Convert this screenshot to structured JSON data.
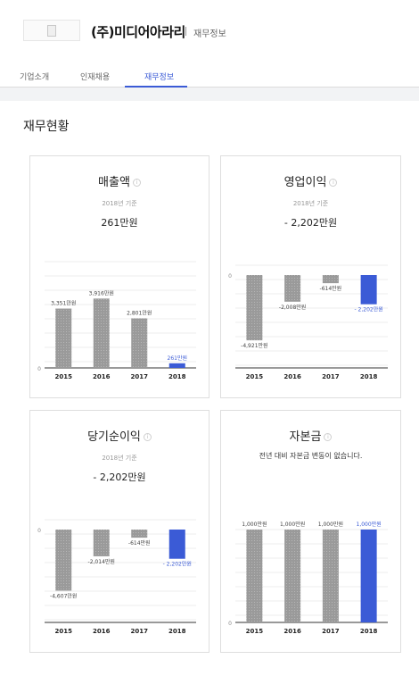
{
  "header": {
    "company_name": "(주)미디어아라리",
    "subtitle": "재무정보"
  },
  "tabs": [
    {
      "label": "기업소개",
      "active": false
    },
    {
      "label": "인재채용",
      "active": false
    },
    {
      "label": "재무정보",
      "active": true
    }
  ],
  "section_title": "재무현황",
  "colors": {
    "accent": "#3b5bd6",
    "bar": "#9a9a9a",
    "bar_highlight": "#3b5bd6"
  },
  "cards": [
    {
      "title": "매출액",
      "basis": "2018년 기준",
      "value": "261만원"
    },
    {
      "title": "영업이익",
      "basis": "2018년 기준",
      "value": "- 2,202만원"
    },
    {
      "title": "당기순이익",
      "basis": "2018년 기준",
      "value": "- 2,202만원"
    },
    {
      "title": "자본금",
      "note": "전년 대비 자본금 변동이 없습니다."
    }
  ],
  "chart_data": [
    {
      "type": "bar",
      "title": "매출액",
      "zero_label": "0",
      "categories": [
        "2015",
        "2016",
        "2017",
        "2018"
      ],
      "series": [
        {
          "values": [
            3351,
            3916,
            2801,
            261
          ]
        }
      ],
      "data_labels": [
        "3,351만원",
        "3,916만원",
        "2,801만원",
        "261만원"
      ],
      "ylim": [
        0,
        6000
      ],
      "grid": true
    },
    {
      "type": "bar",
      "title": "영업이익",
      "zero_label": "0",
      "categories": [
        "2015",
        "2016",
        "2017",
        "2018"
      ],
      "series": [
        {
          "values": [
            -4921,
            -2008,
            -614,
            -2202
          ]
        }
      ],
      "data_labels": [
        "-4,921만원",
        "-2,008만원",
        "-614만원",
        "- 2,202만원"
      ],
      "ylim": [
        -7000,
        0
      ],
      "grid": true
    },
    {
      "type": "bar",
      "title": "당기순이익",
      "zero_label": "0",
      "categories": [
        "2015",
        "2016",
        "2017",
        "2018"
      ],
      "series": [
        {
          "values": [
            -4607,
            -2014,
            -614,
            -2202
          ]
        }
      ],
      "data_labels": [
        "-4,607만원",
        "-2,014만원",
        "-614만원",
        "- 2,202만원"
      ],
      "ylim": [
        -7000,
        0
      ],
      "grid": true
    },
    {
      "type": "bar",
      "title": "자본금",
      "zero_label": "0",
      "categories": [
        "2015",
        "2016",
        "2017",
        "2018"
      ],
      "series": [
        {
          "values": [
            1000,
            1000,
            1000,
            1000
          ]
        }
      ],
      "data_labels": [
        "1,000만원",
        "1,000만원",
        "1,000만원",
        "1,000만원"
      ],
      "ylim": [
        0,
        1000
      ],
      "grid": true
    }
  ]
}
